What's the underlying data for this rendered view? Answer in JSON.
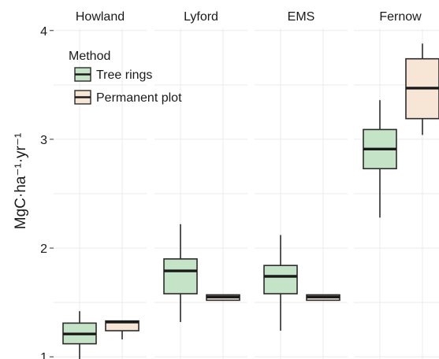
{
  "chart_data": {
    "type": "boxplot",
    "ylabel": "MgC·ha⁻¹·yr⁻¹",
    "ylim": [
      0.98,
      4.02
    ],
    "yticks": [
      1,
      2,
      3,
      4
    ],
    "grid": true,
    "legend": {
      "title": "Method",
      "placement": "top-left",
      "entries": [
        {
          "label": "Tree rings",
          "color": "#c5e3c7"
        },
        {
          "label": "Permanent plot",
          "color": "#f7e6d6"
        }
      ]
    },
    "facets": [
      {
        "title": "Howland",
        "boxes": [
          {
            "method": "Tree rings",
            "min": 0.94,
            "q1": 1.12,
            "median": 1.21,
            "q3": 1.31,
            "max": 1.42
          },
          {
            "method": "Permanent plot",
            "min": 1.16,
            "q1": 1.24,
            "median": 1.32,
            "q3": 1.33,
            "max": 1.33
          }
        ]
      },
      {
        "title": "Lyford",
        "boxes": [
          {
            "method": "Tree rings",
            "min": 1.32,
            "q1": 1.58,
            "median": 1.79,
            "q3": 1.9,
            "max": 2.22
          },
          {
            "method": "Permanent plot",
            "min": 1.52,
            "q1": 1.52,
            "median": 1.55,
            "q3": 1.57,
            "max": 1.57
          }
        ]
      },
      {
        "title": "EMS",
        "boxes": [
          {
            "method": "Tree rings",
            "min": 1.24,
            "q1": 1.58,
            "median": 1.74,
            "q3": 1.84,
            "max": 2.12
          },
          {
            "method": "Permanent plot",
            "min": 1.52,
            "q1": 1.52,
            "median": 1.55,
            "q3": 1.57,
            "max": 1.57
          }
        ]
      },
      {
        "title": "Fernow",
        "boxes": [
          {
            "method": "Tree rings",
            "min": 2.28,
            "q1": 2.73,
            "median": 2.91,
            "q3": 3.09,
            "max": 3.36
          },
          {
            "method": "Permanent plot",
            "min": 3.04,
            "q1": 3.19,
            "median": 3.47,
            "q3": 3.74,
            "max": 3.88
          }
        ]
      }
    ]
  },
  "colors": {
    "tree_rings_fill": "#c5e3c7",
    "permanent_plot_fill": "#f7e6d6",
    "outline": "#2b2b2b",
    "grid": "#ebebeb"
  }
}
